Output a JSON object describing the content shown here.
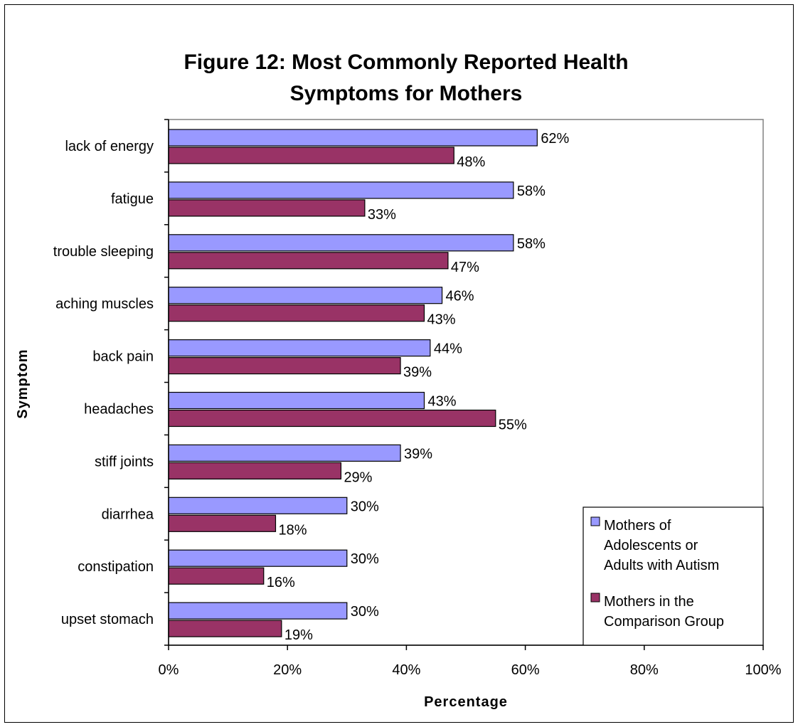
{
  "chart_data": {
    "type": "bar",
    "orientation": "horizontal",
    "title": [
      "Figure 12: Most Commonly Reported Health",
      "Symptoms for Mothers"
    ],
    "xlabel": "Percentage",
    "ylabel": "Symptom",
    "xlim": [
      0,
      100
    ],
    "x_ticks": [
      "0%",
      "20%",
      "40%",
      "60%",
      "80%",
      "100%"
    ],
    "grid": false,
    "legend_position": "bottom-right",
    "categories": [
      "lack of energy",
      "fatigue",
      "trouble sleeping",
      "aching muscles",
      "back pain",
      "headaches",
      "stiff joints",
      "diarrhea",
      "constipation",
      "upset stomach"
    ],
    "series": [
      {
        "name": [
          "Mothers of",
          "Adolescents or",
          "Adults with Autism"
        ],
        "color": "#9999ff",
        "values": [
          62,
          58,
          58,
          46,
          44,
          43,
          39,
          30,
          30,
          30
        ],
        "labels": [
          "62%",
          "58%",
          "58%",
          "46%",
          "44%",
          "43%",
          "39%",
          "30%",
          "30%",
          "30%"
        ]
      },
      {
        "name": [
          "Mothers in the",
          "Comparison Group"
        ],
        "color": "#993366",
        "values": [
          48,
          33,
          47,
          43,
          39,
          55,
          29,
          18,
          16,
          19
        ],
        "labels": [
          "48%",
          "33%",
          "47%",
          "43%",
          "39%",
          "55%",
          "29%",
          "18%",
          "16%",
          "19%"
        ]
      }
    ]
  }
}
